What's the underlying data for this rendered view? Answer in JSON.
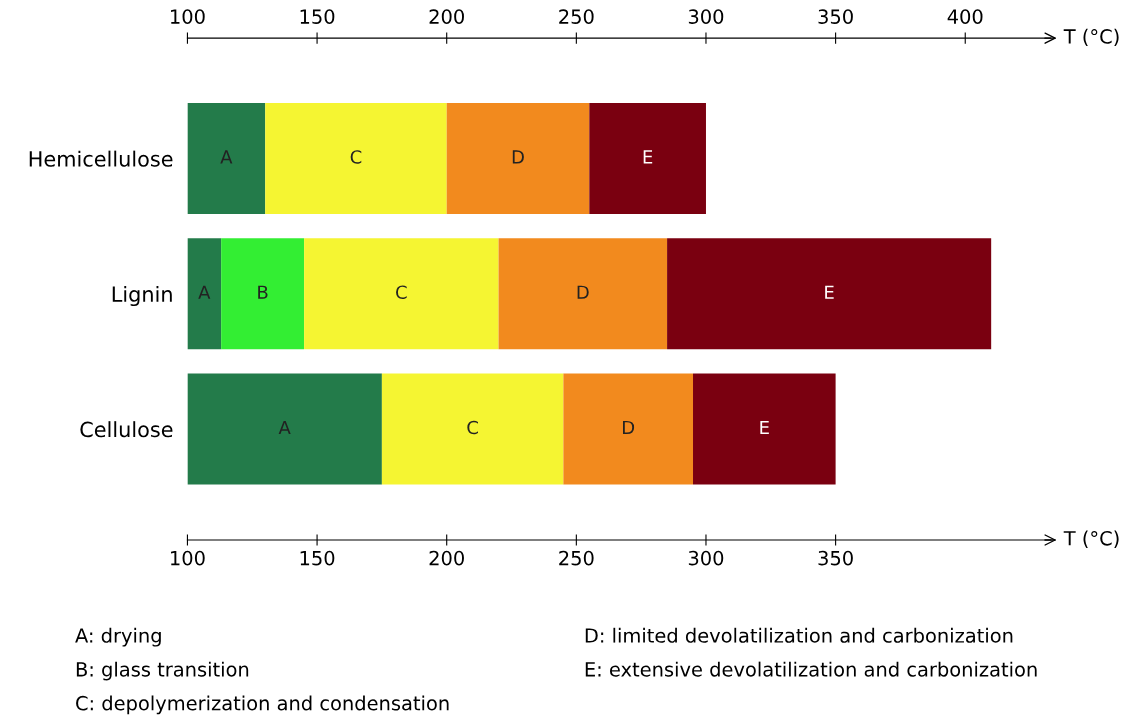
{
  "chart_data": {
    "type": "bar",
    "orientation": "horizontal",
    "categories": [
      "Hemicellulose",
      "Lignin",
      "Cellulose"
    ],
    "series": [
      {
        "color": "#237b4a",
        "base": [
          100,
          100,
          100
        ],
        "values": [
          30,
          13,
          75
        ],
        "value_labels": [
          "A",
          "A",
          "A"
        ]
      },
      {
        "color": "#33ee33",
        "base": [
          null,
          113,
          null
        ],
        "values": [
          null,
          32,
          null
        ],
        "value_labels": [
          null,
          "B",
          null
        ]
      },
      {
        "color": "#f5f532",
        "base": [
          130,
          145,
          175
        ],
        "values": [
          70,
          75,
          70
        ],
        "value_labels": [
          "C",
          "C",
          "C"
        ]
      },
      {
        "color": "#f28a1e",
        "base": [
          200,
          220,
          245
        ],
        "values": [
          55,
          65,
          50
        ],
        "value_labels": [
          "D",
          "D",
          "D"
        ]
      },
      {
        "color": "#7a0010",
        "base": [
          255,
          285,
          295
        ],
        "values": [
          45,
          125,
          55
        ],
        "value_labels": [
          "E",
          "E",
          "E"
        ]
      }
    ],
    "xlim": [
      100,
      433
    ],
    "xticks": [
      100,
      150,
      200,
      250,
      300,
      350
    ],
    "x2lim": [
      100,
      433
    ],
    "x2ticks": [
      100,
      150,
      200,
      250,
      300,
      350,
      400
    ],
    "xlabel": "T (°C)",
    "x2label": "T (°C)",
    "grid": false,
    "annotations": [
      "A: drying",
      "B: glass transition",
      "C: depolymerization and condensation",
      "D: limited devolatilization and carbonization",
      "E: extensive devolatilization and carbonization"
    ]
  }
}
